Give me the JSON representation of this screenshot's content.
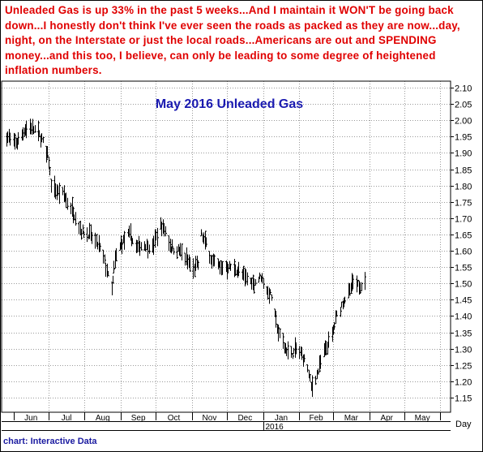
{
  "headline": {
    "text": "Unleaded Gas is up 33% in the past 5 weeks...And I maintain it WON'T be going back down...I honestly don't think I've ever seen the roads as packed as they are now...day, night, on the Interstate or just the local roads...Americans are out and SPENDING money...and this too, I believe, can only be leading to some degree of heightened inflation numbers."
  },
  "credit": "chart: Interactive Data",
  "colors": {
    "headline": "#e00000",
    "title": "#1a1ab0",
    "credit": "#1a1aa0",
    "bars": "#000000"
  },
  "chart_data": {
    "type": "bar",
    "style": "ohlc",
    "title": "May 2016 Unleaded Gas",
    "ylim": [
      1.1,
      2.1
    ],
    "y_ticks": [
      "2.10",
      "2.05",
      "2.00",
      "1.95",
      "1.90",
      "1.85",
      "1.80",
      "1.75",
      "1.70",
      "1.65",
      "1.60",
      "1.55",
      "1.50",
      "1.45",
      "1.40",
      "1.35",
      "1.30",
      "1.25",
      "1.20",
      "1.15"
    ],
    "x_months": [
      "Jun",
      "Jul",
      "Aug",
      "Sep",
      "Oct",
      "Nov",
      "Dec",
      "Jan",
      "Feb",
      "Mar",
      "Apr",
      "May"
    ],
    "x_year_label": "2016",
    "x_axis_unit": "Day",
    "grid": true,
    "price_path": [
      [
        "2015-05-26",
        1.95
      ],
      [
        "2015-06-03",
        1.93
      ],
      [
        "2015-06-10",
        1.97
      ],
      [
        "2015-06-17",
        1.98
      ],
      [
        "2015-06-24",
        1.95
      ],
      [
        "2015-07-01",
        1.88
      ],
      [
        "2015-07-03",
        1.8
      ],
      [
        "2015-07-08",
        1.78
      ],
      [
        "2015-07-14",
        1.77
      ],
      [
        "2015-07-22",
        1.72
      ],
      [
        "2015-07-29",
        1.66
      ],
      [
        "2015-08-05",
        1.65
      ],
      [
        "2015-08-12",
        1.62
      ],
      [
        "2015-08-17",
        1.58
      ],
      [
        "2015-08-24",
        1.48
      ],
      [
        "2015-08-27",
        1.57
      ],
      [
        "2015-09-01",
        1.62
      ],
      [
        "2015-09-08",
        1.65
      ],
      [
        "2015-09-14",
        1.61
      ],
      [
        "2015-09-21",
        1.62
      ],
      [
        "2015-09-28",
        1.61
      ],
      [
        "2015-10-05",
        1.68
      ],
      [
        "2015-10-09",
        1.66
      ],
      [
        "2015-10-14",
        1.61
      ],
      [
        "2015-10-21",
        1.6
      ],
      [
        "2015-10-28",
        1.57
      ],
      [
        "2015-11-02",
        1.54
      ],
      [
        "2015-11-06",
        1.56
      ],
      [
        "2015-11-09",
        1.65
      ],
      [
        "2015-11-13",
        1.62
      ],
      [
        "2015-11-18",
        1.57
      ],
      [
        "2015-11-25",
        1.55
      ],
      [
        "2015-12-02",
        1.55
      ],
      [
        "2015-12-09",
        1.54
      ],
      [
        "2015-12-16",
        1.52
      ],
      [
        "2015-12-23",
        1.5
      ],
      [
        "2015-12-30",
        1.52
      ],
      [
        "2016-01-04",
        1.48
      ],
      [
        "2016-01-08",
        1.46
      ],
      [
        "2016-01-11",
        1.4
      ],
      [
        "2016-01-14",
        1.35
      ],
      [
        "2016-01-20",
        1.3
      ],
      [
        "2016-01-25",
        1.28
      ],
      [
        "2016-01-29",
        1.3
      ],
      [
        "2016-02-03",
        1.28
      ],
      [
        "2016-02-08",
        1.24
      ],
      [
        "2016-02-11",
        1.18
      ],
      [
        "2016-02-16",
        1.22
      ],
      [
        "2016-02-19",
        1.26
      ],
      [
        "2016-02-24",
        1.3
      ],
      [
        "2016-02-29",
        1.34
      ],
      [
        "2016-03-04",
        1.4
      ],
      [
        "2016-03-09",
        1.44
      ],
      [
        "2016-03-14",
        1.47
      ],
      [
        "2016-03-18",
        1.5
      ],
      [
        "2016-03-21",
        1.49
      ],
      [
        "2016-03-25",
        1.5
      ]
    ],
    "last_bar": [
      "2016-03-28",
      1.53
    ]
  }
}
